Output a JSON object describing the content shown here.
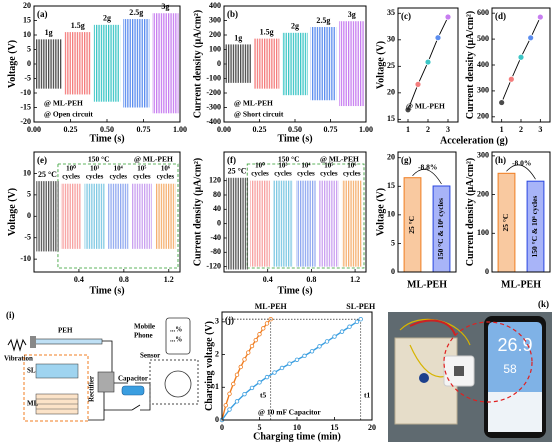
{
  "chart_data": [
    {
      "type": "signal",
      "label": "(a)",
      "xlabel": "Time (s)",
      "ylabel": "Voltage (V)",
      "xlim": [
        0,
        1
      ],
      "xticks": [
        {
          "value": 0,
          "label": "0.00"
        },
        0.25,
        {
          "value": 0.5,
          "label": "0.50"
        },
        0.75,
        {
          "value": 1,
          "label": "1.00"
        }
      ],
      "ylim": [
        -20,
        20
      ],
      "yticks": [
        -20,
        -15,
        -10,
        -5,
        0,
        5,
        10,
        15,
        20
      ],
      "annotations": [
        "@ ML-PEH",
        "@ Open circuit"
      ],
      "blocks": [
        {
          "name": "1g",
          "color": "#4a4a4a",
          "x": [
            0.01,
            0.19
          ],
          "values": [
            8.5,
            -8.5
          ]
        },
        {
          "name": "1.5g",
          "color": "#f47c7c",
          "x": [
            0.21,
            0.39
          ],
          "values": [
            11,
            -10.5
          ]
        },
        {
          "name": "2g",
          "color": "#3cc6c6",
          "x": [
            0.41,
            0.59
          ],
          "values": [
            13.5,
            -13
          ]
        },
        {
          "name": "2.5g",
          "color": "#5b8def",
          "x": [
            0.61,
            0.79
          ],
          "values": [
            15.5,
            -15
          ]
        },
        {
          "name": "3g",
          "color": "#c77df0",
          "x": [
            0.81,
            0.99
          ],
          "values": [
            17.5,
            -17
          ]
        }
      ]
    },
    {
      "type": "signal",
      "label": "(b)",
      "xlabel": "Time (s)",
      "ylabel": "Current density (μA/cm²)",
      "xlim": [
        0,
        1
      ],
      "xticks": [
        {
          "value": 0,
          "label": "0.00"
        },
        0.25,
        {
          "value": 0.5,
          "label": "0.50"
        },
        0.75,
        {
          "value": 1,
          "label": "1.00"
        }
      ],
      "ylim": [
        -400,
        400
      ],
      "yticks": [
        -400,
        -300,
        -200,
        -100,
        0,
        100,
        200,
        300,
        400
      ],
      "annotations": [
        "@ ML-PEH",
        "@ Short circuit"
      ],
      "blocks": [
        {
          "name": "1g",
          "color": "#4a4a4a",
          "x": [
            0.01,
            0.19
          ],
          "values": [
            135,
            -130
          ]
        },
        {
          "name": "1.5g",
          "color": "#f47c7c",
          "x": [
            0.21,
            0.39
          ],
          "values": [
            175,
            -170
          ]
        },
        {
          "name": "2g",
          "color": "#3cc6c6",
          "x": [
            0.41,
            0.59
          ],
          "values": [
            215,
            -215
          ]
        },
        {
          "name": "2.5g",
          "color": "#5b8def",
          "x": [
            0.61,
            0.79
          ],
          "values": [
            255,
            -250
          ]
        },
        {
          "name": "3g",
          "color": "#c77df0",
          "x": [
            0.81,
            0.99
          ],
          "values": [
            295,
            -290
          ]
        }
      ]
    },
    {
      "type": "line",
      "label": "(c)",
      "xlabel": "Acceleration (g)",
      "ylabel": "Voltage (V)",
      "xlim": [
        0.5,
        3.5
      ],
      "xticks": [
        1,
        2,
        3
      ],
      "ylim": [
        14.5,
        36
      ],
      "yticks": [
        15,
        20,
        25,
        30,
        35
      ],
      "x": [
        1,
        1.5,
        2,
        2.5,
        3
      ],
      "values": [
        16.8,
        21.6,
        25.8,
        30.4,
        34.3
      ],
      "point_colors": [
        "#4a4a4a",
        "#f47c7c",
        "#3cc6c6",
        "#5b8def",
        "#c77df0"
      ],
      "annotations": [
        "@ ML-PEH"
      ]
    },
    {
      "type": "line",
      "label": "(d)",
      "ylabel": "Current density (μA/cm²)",
      "xlim": [
        0.5,
        3.5
      ],
      "xticks": [
        1,
        2,
        3
      ],
      "ylim": [
        180,
        620
      ],
      "yticks": [
        200,
        300,
        400,
        500,
        600
      ],
      "x": [
        1,
        1.5,
        2,
        2.5,
        3
      ],
      "values": [
        255,
        345,
        430,
        505,
        585
      ],
      "point_colors": [
        "#4a4a4a",
        "#f47c7c",
        "#3cc6c6",
        "#5b8def",
        "#c77df0"
      ]
    },
    {
      "type": "signal",
      "label": "(e)",
      "xlabel": "Time (s)",
      "ylabel": "Voltage (V)",
      "xlim": [
        0,
        1.3
      ],
      "xticks": [
        0.4,
        0.8,
        1.2
      ],
      "ylim": [
        -13,
        15
      ],
      "yticks": [
        -10,
        -5,
        0,
        5,
        10
      ],
      "annotations": [
        "150 °C",
        "@ ML-PEH"
      ],
      "blocks": [
        {
          "name": "25 °C",
          "color": "#555555",
          "x": [
            0.02,
            0.22
          ],
          "values": [
            8.2,
            -8.2
          ]
        },
        {
          "name": "10⁰",
          "unit": "cycles",
          "color": "#f7a0a0",
          "x": [
            0.24,
            0.42
          ],
          "values": [
            7.6,
            -7.6
          ]
        },
        {
          "name": "10³",
          "unit": "cycles",
          "color": "#7ec8e3",
          "x": [
            0.45,
            0.63
          ],
          "values": [
            7.6,
            -7.6
          ]
        },
        {
          "name": "10⁴",
          "unit": "cycles",
          "color": "#8fa8f0",
          "x": [
            0.66,
            0.84
          ],
          "values": [
            7.6,
            -7.6
          ]
        },
        {
          "name": "10⁵",
          "unit": "cycles",
          "color": "#c9a0f0",
          "x": [
            0.87,
            1.05
          ],
          "values": [
            7.6,
            -7.6
          ]
        },
        {
          "name": "10⁶",
          "unit": "cycles",
          "color": "#f5b070",
          "x": [
            1.08,
            1.26
          ],
          "values": [
            7.6,
            -7.6
          ]
        }
      ]
    },
    {
      "type": "signal",
      "label": "(f)",
      "xlabel": "Time (s)",
      "ylabel": "Current density (μA/cm²)",
      "xlim": [
        0,
        1.3
      ],
      "xticks": [
        0.4,
        0.8,
        1.2
      ],
      "ylim": [
        -135,
        200
      ],
      "yticks": [
        -120,
        -80,
        -40,
        0,
        40,
        80,
        120
      ],
      "annotations": [
        "150 °C",
        "@ ML-PEH"
      ],
      "blocks": [
        {
          "name": "25 °C",
          "color": "#555555",
          "x": [
            0.02,
            0.22
          ],
          "values": [
            128,
            -128
          ]
        },
        {
          "name": "10⁰",
          "unit": "cycles",
          "color": "#f7a0a0",
          "x": [
            0.24,
            0.42
          ],
          "values": [
            120,
            -120
          ]
        },
        {
          "name": "10³",
          "unit": "cycles",
          "color": "#7ec8e3",
          "x": [
            0.45,
            0.63
          ],
          "values": [
            120,
            -120
          ]
        },
        {
          "name": "10⁴",
          "unit": "cycles",
          "color": "#8fa8f0",
          "x": [
            0.66,
            0.84
          ],
          "values": [
            120,
            -120
          ]
        },
        {
          "name": "10⁵",
          "unit": "cycles",
          "color": "#c9a0f0",
          "x": [
            0.87,
            1.05
          ],
          "values": [
            120,
            -120
          ]
        },
        {
          "name": "10⁶",
          "unit": "cycles",
          "color": "#f5b070",
          "x": [
            1.08,
            1.26
          ],
          "values": [
            120,
            -120
          ]
        }
      ]
    },
    {
      "type": "bar",
      "label": "(g)",
      "xlabel": "ML-PEH",
      "ylabel": "Voltage (V)",
      "categories": [
        "25 °C",
        "150 °C & 10⁶ cycles"
      ],
      "values": [
        16.5,
        15.05
      ],
      "colors": [
        "#f9c9a0",
        "#a8b4f8"
      ],
      "edge_colors": [
        "#f07d20",
        "#2846e0"
      ],
      "ylim": [
        0,
        21
      ],
      "yticks": [
        0,
        5,
        10,
        15,
        20
      ],
      "annotations": [
        "-8.8%"
      ]
    },
    {
      "type": "bar",
      "label": "(h)",
      "xlabel": "ML-PEH",
      "ylabel": "Current density (μA/cm²)",
      "categories": [
        "25 °C",
        "150 °C & 10⁶ cycles"
      ],
      "values": [
        255,
        234.6
      ],
      "colors": [
        "#f9c9a0",
        "#a8b4f8"
      ],
      "edge_colors": [
        "#f07d20",
        "#2846e0"
      ],
      "ylim": [
        0,
        310
      ],
      "yticks": [
        0,
        100,
        200,
        300
      ],
      "annotations": [
        "-8.0%"
      ]
    },
    {
      "type": "line",
      "label": "(j)",
      "xlabel": "Charging time (min)",
      "ylabel": "Charging voltage (V)",
      "xlim": [
        0,
        20
      ],
      "xticks": [
        0,
        5,
        10,
        15,
        20
      ],
      "ylim": [
        0,
        3.3
      ],
      "yticks": [
        0,
        1,
        2,
        3
      ],
      "series": [
        {
          "name": "ML-PEH",
          "color": "#f07d20",
          "x": [
            0,
            0.5,
            1,
            1.5,
            2,
            2.5,
            3,
            3.5,
            4,
            4.5,
            5,
            5.5,
            6,
            6.5
          ],
          "values": [
            0,
            0.45,
            0.8,
            1.1,
            1.38,
            1.62,
            1.85,
            2.06,
            2.26,
            2.44,
            2.62,
            2.8,
            2.95,
            3.08
          ]
        },
        {
          "name": "SL-PEH",
          "color": "#3a9ee0",
          "x": [
            0,
            1,
            2,
            3,
            4,
            5,
            6,
            7,
            8,
            9,
            10,
            11,
            12,
            13,
            14,
            15,
            16,
            17,
            18,
            18.5
          ],
          "values": [
            0,
            0.32,
            0.57,
            0.79,
            0.98,
            1.15,
            1.31,
            1.45,
            1.59,
            1.72,
            1.84,
            1.96,
            2.1,
            2.25,
            2.4,
            2.55,
            2.7,
            2.85,
            3.0,
            3.08
          ]
        }
      ],
      "annotations": [
        "@ 10 mF Capacitor",
        "t5",
        "t1"
      ]
    }
  ],
  "diagram": {
    "label": "(i)",
    "peh": "PEH",
    "vibration": "Vibration",
    "sl": "SL",
    "ml": "ML",
    "rectifier": "Rectifier",
    "capacitor": "Capacitor",
    "sensor": "Sensor",
    "mobile": "Mobile",
    "phone": "Phone",
    "reading1": "...%",
    "reading2": "...%"
  },
  "photo": {
    "label": "(k)",
    "temperature": "26.9",
    "humidity": "58"
  }
}
